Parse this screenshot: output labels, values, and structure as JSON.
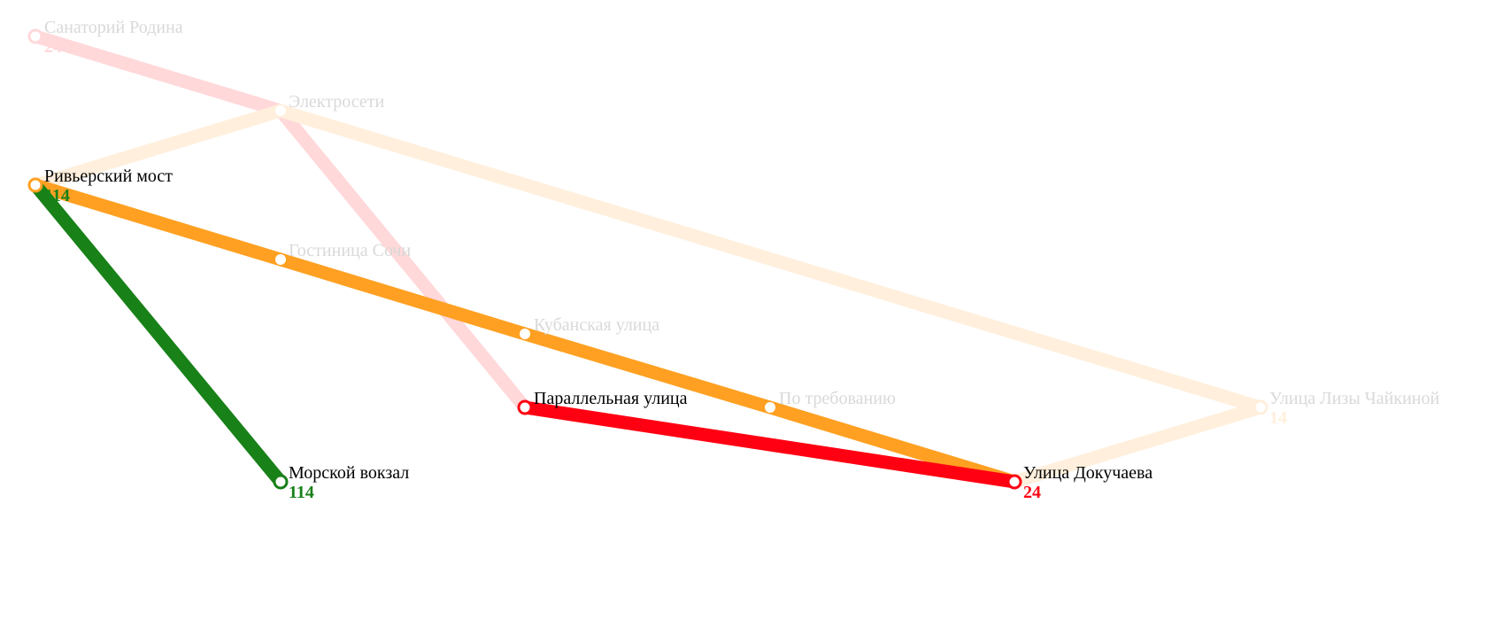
{
  "colors": {
    "route_24": "#ff0012",
    "route_24_faded": "#ffd8da",
    "route_14_faded": "#ffefdc",
    "route_14_orange": "#ffa022",
    "route_114": "#188118",
    "active_text": "#000000",
    "dim_text": "#d9d9d9",
    "background": "#ffffff"
  },
  "stations": {
    "sanatoriy": {
      "name": "Санаторий Родина",
      "route": "24"
    },
    "elektroseti": {
      "name": "Электросети"
    },
    "rivyersky": {
      "name": "Ривьерский мост",
      "route": "114"
    },
    "gostinitsa": {
      "name": "Гостиница Сочи"
    },
    "kubanskaya": {
      "name": "Кубанская улица"
    },
    "parallelnaya": {
      "name": "Параллельная улица"
    },
    "po_trebovaniyu": {
      "name": "По требованию"
    },
    "lizy": {
      "name": "Улица Лизы Чайкиной",
      "route": "14"
    },
    "morskoy": {
      "name": "Морской вокзал",
      "route": "114"
    },
    "dokuchaeva": {
      "name": "Улица Докучаева",
      "route": "24"
    }
  }
}
